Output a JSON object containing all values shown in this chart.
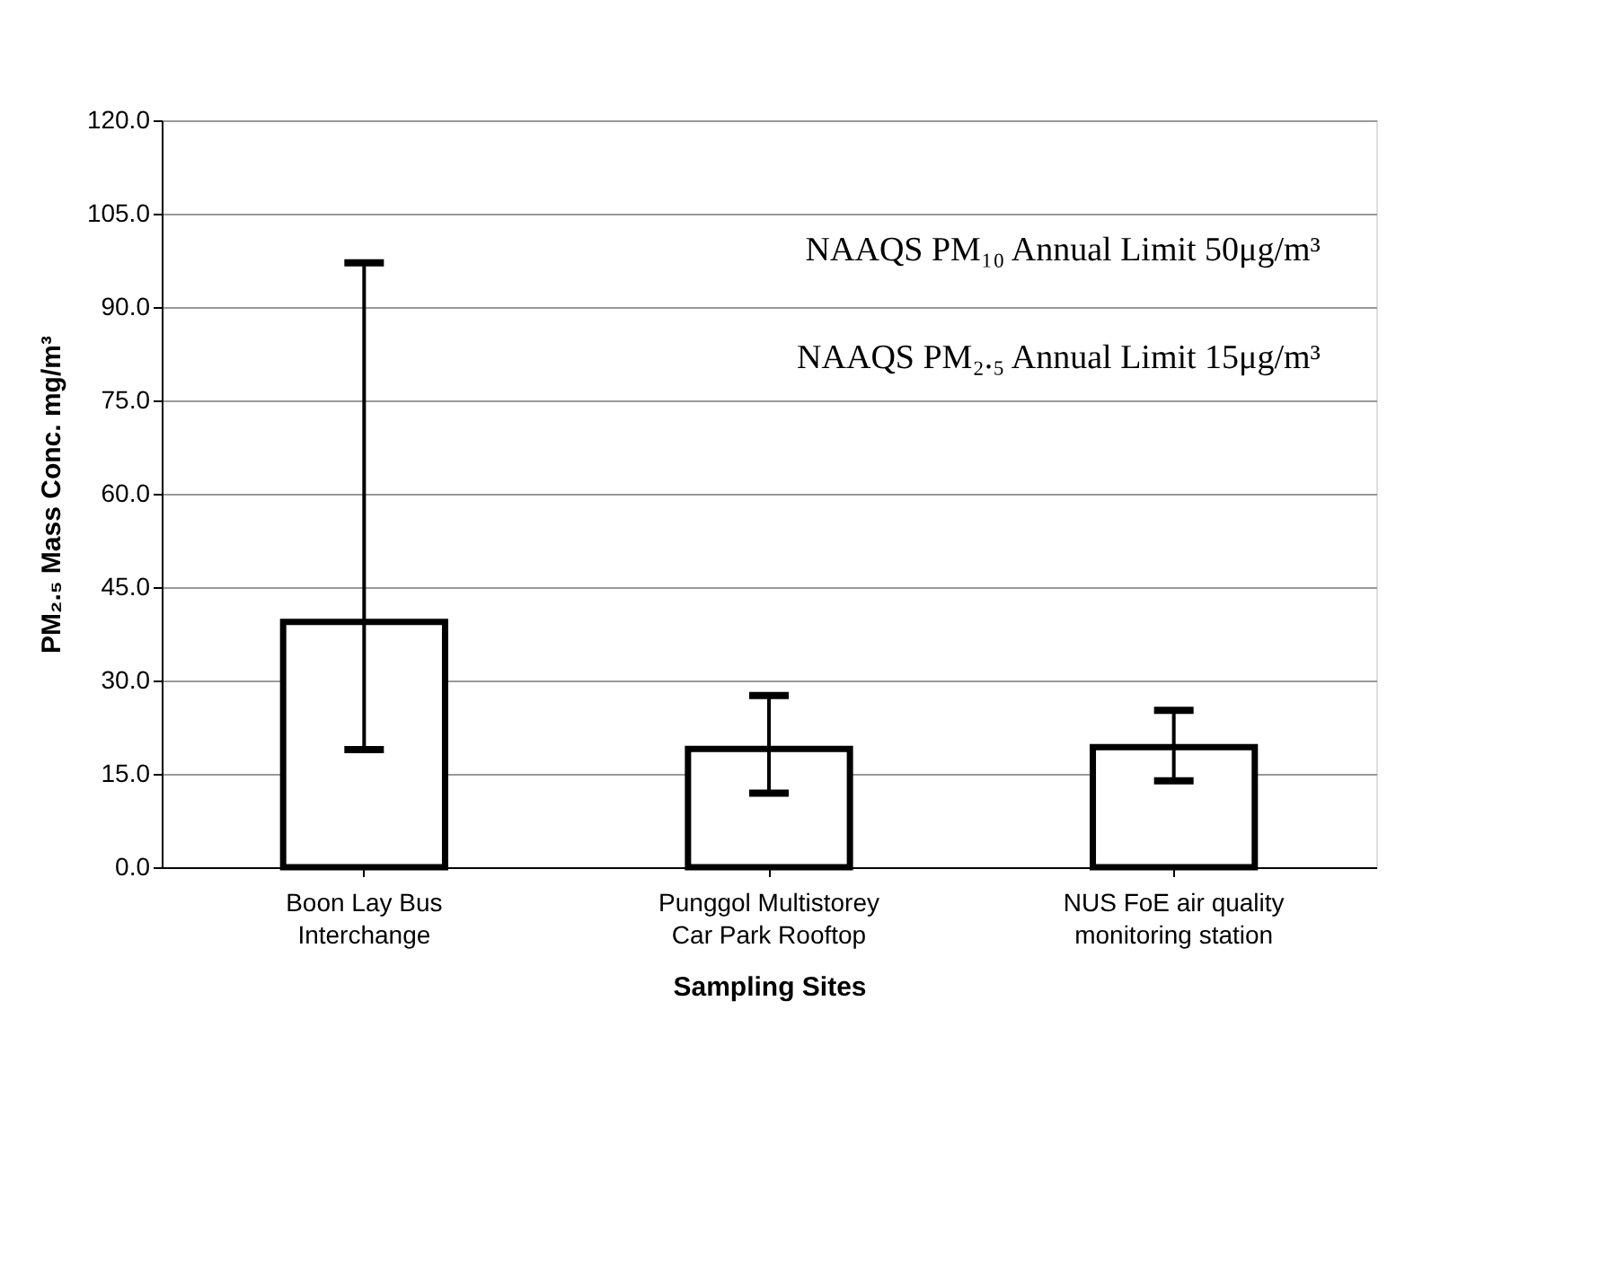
{
  "chart_data": {
    "type": "bar",
    "xlabel": "Sampling Sites",
    "ylabel": "PM₂.₅ Mass Conc. mg/m³",
    "categories": [
      "Boon Lay Bus Interchange",
      "Punggol Multistorey Car Park Rooftop",
      "NUS FoE air quality monitoring station"
    ],
    "values": [
      39.4,
      19.0,
      19.3
    ],
    "errors": [
      [
        18.9,
        97.1
      ],
      [
        11.9,
        27.6
      ],
      [
        13.9,
        25.2
      ]
    ],
    "color": "#ffffff",
    "ylim": [
      0,
      120
    ],
    "yticks": [
      {
        "value": 0,
        "label": "0.0"
      },
      {
        "value": 15,
        "label": "15.0"
      },
      {
        "value": 30,
        "label": "30.0"
      },
      {
        "value": 45,
        "label": "45.0"
      },
      {
        "value": 60,
        "label": "60.0"
      },
      {
        "value": 75,
        "label": "75.0"
      },
      {
        "value": 90,
        "label": "90.0"
      },
      {
        "value": 105,
        "label": "105.0"
      },
      {
        "value": 120,
        "label": "120.0"
      }
    ],
    "grid": "y",
    "annotations": [
      "NAAQS PM₁₀ Annual Limit 50μg/m³",
      "NAAQS PM₂.₅ Annual Limit 15μg/m³"
    ]
  }
}
